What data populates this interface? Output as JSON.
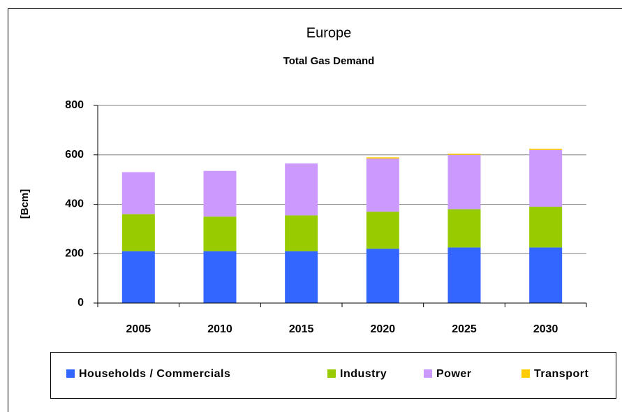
{
  "chart_data": {
    "type": "stacked_bar",
    "title": "Europe",
    "subtitle": "Total Gas Demand",
    "y_label": "[Bcm]",
    "categories": [
      "2005",
      "2010",
      "2015",
      "2020",
      "2025",
      "2030"
    ],
    "series": [
      {
        "name": "Households / Commercials",
        "color": "#3366ff",
        "values": [
          210,
          210,
          210,
          220,
          225,
          225
        ]
      },
      {
        "name": "Industry",
        "color": "#99cc00",
        "values": [
          150,
          140,
          145,
          150,
          155,
          165
        ]
      },
      {
        "name": "Power",
        "color": "#cc99ff",
        "values": [
          170,
          185,
          210,
          215,
          220,
          230
        ]
      },
      {
        "name": "Transport",
        "color": "#ffcc00",
        "values": [
          0,
          0,
          0,
          5,
          5,
          5
        ]
      }
    ],
    "ylim": [
      0,
      800
    ],
    "yticks": [
      0,
      200,
      400,
      600,
      800
    ],
    "grid": true,
    "legend": "bottom"
  }
}
